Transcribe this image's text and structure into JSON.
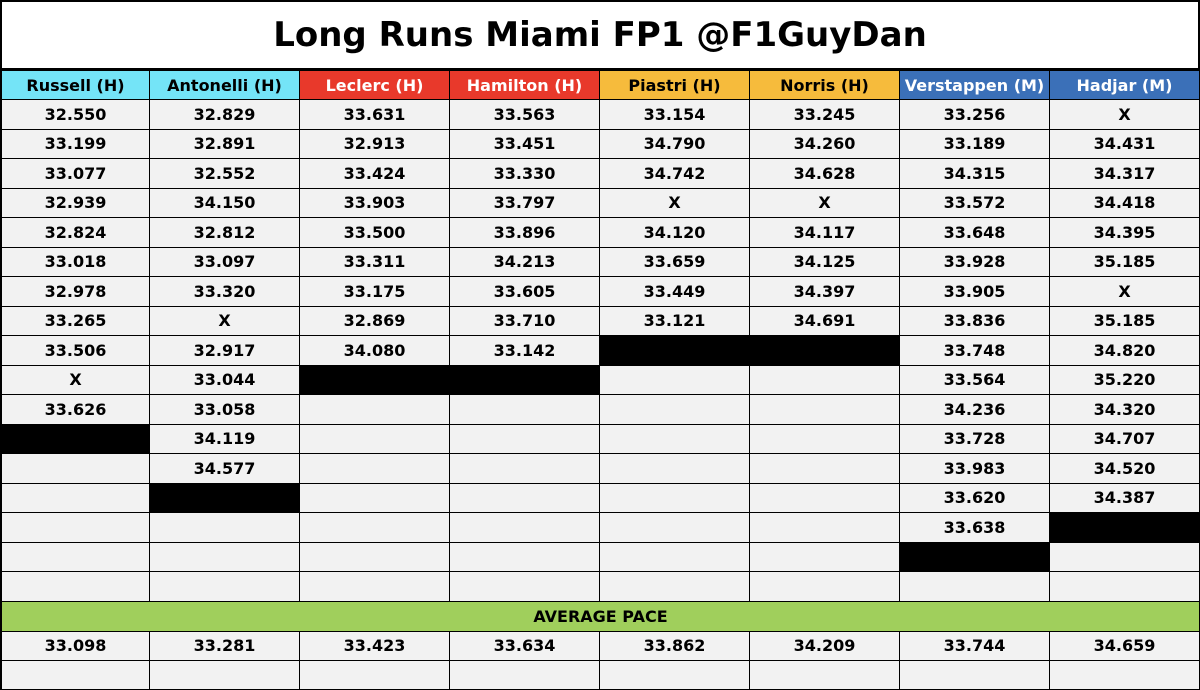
{
  "title": "Long Runs Miami FP1 @F1GuyDan",
  "average_label": "AVERAGE PACE",
  "average_color": "#a0cf5c",
  "rows": 17,
  "columns": [
    {
      "name": "Russell (H)",
      "color": "#74e4f7",
      "text_color": "#000000",
      "laps": [
        "32.550",
        "33.199",
        "33.077",
        "32.939",
        "32.824",
        "33.018",
        "32.978",
        "33.265",
        "33.506",
        "X",
        "33.626"
      ],
      "average": "33.098"
    },
    {
      "name": "Antonelli (H)",
      "color": "#74e4f7",
      "text_color": "#000000",
      "laps": [
        "32.829",
        "32.891",
        "32.552",
        "34.150",
        "32.812",
        "33.097",
        "33.320",
        "X",
        "32.917",
        "33.044",
        "33.058",
        "34.119",
        "34.577"
      ],
      "average": "33.281"
    },
    {
      "name": "Leclerc (H)",
      "color": "#e8392b",
      "text_color": "#ffffff",
      "laps": [
        "33.631",
        "32.913",
        "33.424",
        "33.903",
        "33.500",
        "33.311",
        "33.175",
        "32.869",
        "34.080"
      ],
      "average": "33.423"
    },
    {
      "name": "Hamilton (H)",
      "color": "#e8392b",
      "text_color": "#ffffff",
      "laps": [
        "33.563",
        "33.451",
        "33.330",
        "33.797",
        "33.896",
        "34.213",
        "33.605",
        "33.710",
        "33.142"
      ],
      "average": "33.634"
    },
    {
      "name": "Piastri (H)",
      "color": "#f6bb3c",
      "text_color": "#000000",
      "laps": [
        "33.154",
        "34.790",
        "34.742",
        "X",
        "34.120",
        "33.659",
        "33.449",
        "33.121"
      ],
      "average": "33.862"
    },
    {
      "name": "Norris (H)",
      "color": "#f6bb3c",
      "text_color": "#000000",
      "laps": [
        "33.245",
        "34.260",
        "34.628",
        "X",
        "34.117",
        "34.125",
        "34.397",
        "34.691"
      ],
      "average": "34.209"
    },
    {
      "name": "Verstappen (M)",
      "color": "#3b70b8",
      "text_color": "#ffffff",
      "laps": [
        "33.256",
        "33.189",
        "34.315",
        "33.572",
        "33.648",
        "33.928",
        "33.905",
        "33.836",
        "33.748",
        "33.564",
        "34.236",
        "33.728",
        "33.983",
        "33.620",
        "33.638"
      ],
      "average": "33.744"
    },
    {
      "name": "Hadjar (M)",
      "color": "#3b70b8",
      "text_color": "#ffffff",
      "laps": [
        "X",
        "34.431",
        "34.317",
        "34.418",
        "34.395",
        "35.185",
        "X",
        "35.185",
        "34.820",
        "35.220",
        "34.320",
        "34.707",
        "34.520",
        "34.387"
      ],
      "average": "34.659"
    }
  ]
}
